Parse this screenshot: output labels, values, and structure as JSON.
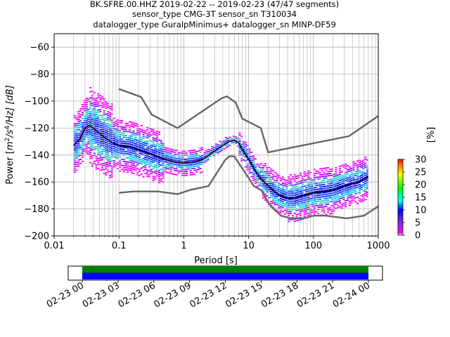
{
  "title_lines": [
    "BK.SFRE.00.HHZ   2019-02-22 -- 2019-02-23  (47/47 segments)",
    "sensor_type CMG-3T sensor_sn T310034",
    "datalogger_type GuralpMinimus+ datalogger_sn MINP-DF59"
  ],
  "chart_data": {
    "type": "heatmap",
    "xlabel": "Period [s]",
    "ylabel_parts": [
      "Power [",
      "m",
      "2",
      "/s",
      "4",
      "/Hz] [dB]"
    ],
    "x_scale": "log",
    "xlim": [
      0.01,
      1000
    ],
    "ylim": [
      -200,
      -50
    ],
    "x_ticks": [
      0.01,
      0.1,
      1,
      10,
      100,
      1000
    ],
    "x_tick_labels": [
      "0.01",
      "0.1",
      "1",
      "10",
      "100",
      "1000"
    ],
    "y_ticks": [
      -200,
      -180,
      -160,
      -140,
      -120,
      -100,
      -80,
      -60
    ],
    "y_tick_labels": [
      "−200",
      "−180",
      "−160",
      "−140",
      "−120",
      "−100",
      "−80",
      "−60"
    ],
    "grid": true,
    "colorbar": {
      "label": "[%]",
      "range": [
        0,
        30
      ],
      "ticks": [
        0,
        5,
        10,
        15,
        20,
        25,
        30
      ],
      "tick_labels": [
        "0",
        "5",
        "10",
        "15",
        "20",
        "25",
        "30"
      ]
    },
    "mean_curve": {
      "color": "#000000",
      "points": [
        [
          0.02,
          -133
        ],
        [
          0.025,
          -128
        ],
        [
          0.03,
          -120
        ],
        [
          0.035,
          -118
        ],
        [
          0.045,
          -122
        ],
        [
          0.06,
          -127
        ],
        [
          0.08,
          -131
        ],
        [
          0.1,
          -133
        ],
        [
          0.15,
          -134
        ],
        [
          0.2,
          -136
        ],
        [
          0.3,
          -139
        ],
        [
          0.5,
          -143
        ],
        [
          0.7,
          -145
        ],
        [
          1,
          -146
        ],
        [
          1.5,
          -145
        ],
        [
          2,
          -143
        ],
        [
          3,
          -137
        ],
        [
          4,
          -133
        ],
        [
          5,
          -130
        ],
        [
          6,
          -129
        ],
        [
          7,
          -131
        ],
        [
          8,
          -136
        ],
        [
          10,
          -143
        ],
        [
          12,
          -150
        ],
        [
          15,
          -157
        ],
        [
          20,
          -163
        ],
        [
          25,
          -167
        ],
        [
          30,
          -170
        ],
        [
          40,
          -172
        ],
        [
          50,
          -172
        ],
        [
          70,
          -170
        ],
        [
          100,
          -168
        ],
        [
          150,
          -167
        ],
        [
          200,
          -166
        ],
        [
          300,
          -163
        ],
        [
          400,
          -161
        ],
        [
          500,
          -160
        ],
        [
          600,
          -158
        ],
        [
          700,
          -156
        ]
      ]
    },
    "noise_model_high": {
      "color": "#666666",
      "points": [
        [
          0.1,
          -91
        ],
        [
          0.22,
          -97
        ],
        [
          0.32,
          -110
        ],
        [
          0.8,
          -120
        ],
        [
          3.8,
          -98
        ],
        [
          4.6,
          -96.5
        ],
        [
          6.3,
          -101
        ],
        [
          8,
          -113
        ],
        [
          15.4,
          -120
        ],
        [
          20,
          -138
        ],
        [
          354,
          -126
        ],
        [
          1000,
          -111
        ]
      ]
    },
    "noise_model_low": {
      "color": "#666666",
      "points": [
        [
          0.1,
          -168
        ],
        [
          0.17,
          -167
        ],
        [
          0.4,
          -167
        ],
        [
          0.8,
          -169
        ],
        [
          1.24,
          -166
        ],
        [
          2.4,
          -163
        ],
        [
          4.3,
          -144
        ],
        [
          5,
          -141
        ],
        [
          6,
          -141
        ],
        [
          10,
          -157
        ],
        [
          12,
          -163
        ],
        [
          15.6,
          -166
        ],
        [
          21.9,
          -178
        ],
        [
          31.6,
          -185
        ],
        [
          45,
          -187
        ],
        [
          70,
          -187
        ],
        [
          101,
          -185
        ],
        [
          154,
          -185
        ],
        [
          328,
          -187
        ],
        [
          600,
          -185
        ],
        [
          1000,
          -178
        ]
      ]
    },
    "timeline": {
      "tick_labels": [
        "02-23 00",
        "02-23 03",
        "02-23 06",
        "02-23 09",
        "02-23 12",
        "02-23 15",
        "02-23 18",
        "02-23 21",
        "02-24 00"
      ],
      "bands": [
        {
          "color": "#008000",
          "from": "02-23 00",
          "to": "02-24 00"
        },
        {
          "color": "#0000ff",
          "from": "02-23 00",
          "to": "02-24 00"
        }
      ]
    }
  }
}
